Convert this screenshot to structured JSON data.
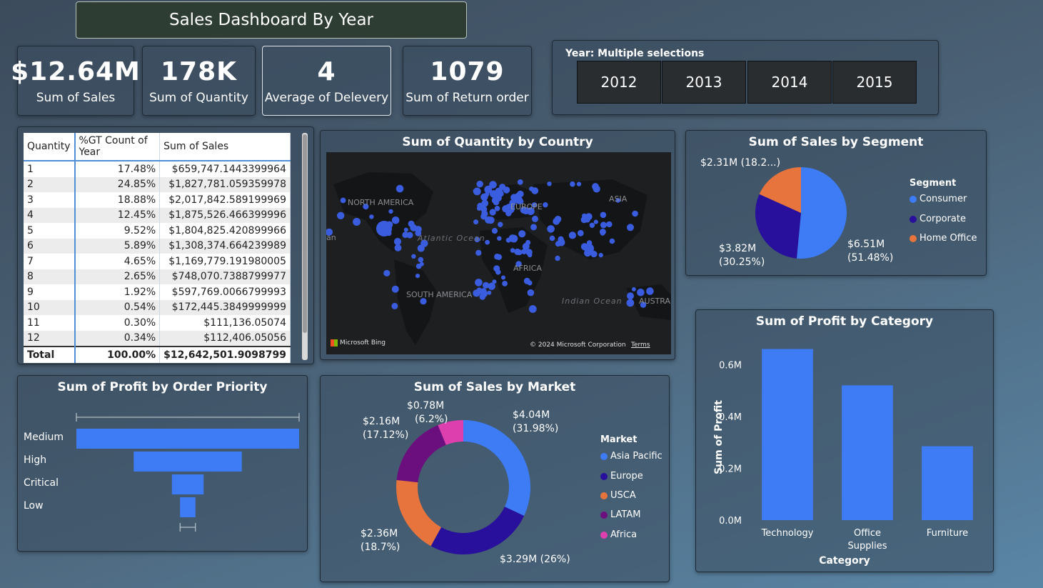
{
  "header": {
    "title": "Sales Dashboard By Year"
  },
  "kpis": [
    {
      "value": "$12.64M",
      "label": "Sum of Sales"
    },
    {
      "value": "178K",
      "label": "Sum of Quantity"
    },
    {
      "value": "4",
      "label": "Average of Delevery"
    },
    {
      "value": "1079",
      "label": "Sum of Return order"
    }
  ],
  "slicer": {
    "title": "Year: Multiple selections",
    "years": [
      "2012",
      "2013",
      "2014",
      "2015"
    ]
  },
  "table": {
    "columns": [
      "Quantity",
      "%GT Count of Year",
      "Sum of Sales"
    ],
    "rows": [
      [
        "1",
        "17.48%",
        "$659,747.1443399964"
      ],
      [
        "2",
        "24.85%",
        "$1,827,781.059359978"
      ],
      [
        "3",
        "18.88%",
        "$2,017,842.589199969"
      ],
      [
        "4",
        "12.45%",
        "$1,875,526.466399996"
      ],
      [
        "5",
        "9.52%",
        "$1,804,825.420899966"
      ],
      [
        "6",
        "5.89%",
        "$1,308,374.664239989"
      ],
      [
        "7",
        "4.65%",
        "$1,169,779.191980005"
      ],
      [
        "8",
        "2.65%",
        "$748,070.7388799977"
      ],
      [
        "9",
        "1.92%",
        "$597,769.0066799993"
      ],
      [
        "10",
        "0.54%",
        "$172,445.3849999999"
      ],
      [
        "11",
        "0.30%",
        "$111,136.05074"
      ],
      [
        "12",
        "0.34%",
        "$112,406.05056"
      ]
    ],
    "total": [
      "Total",
      "100.00%",
      "$12,642,501.9098799"
    ]
  },
  "map": {
    "title": "Sum of Quantity by Country",
    "continents": [
      "NORTH AMERICA",
      "EUROPE",
      "ASIA",
      "AFRICA",
      "SOUTH AMERICA",
      "AUSTRA"
    ],
    "oceans": [
      "Atlantic Ocean",
      "Indian Ocean"
    ],
    "edge_label": "an",
    "bing": "Microsoft Bing",
    "copyright": "© 2024 Microsoft Corporation",
    "terms": "Terms",
    "bubble_color": "#3a5de0"
  },
  "colors": {
    "blue": "#3d7cf5",
    "navy": "#28109c",
    "orange": "#e6743c",
    "purple": "#6c0f7e",
    "pink": "#de3fae"
  },
  "chart_data": [
    {
      "type": "pie",
      "title": "Sum of Sales by Segment",
      "legend_title": "Segment",
      "legend_placement": "right",
      "slices": [
        {
          "name": "Consumer",
          "value": 6.51,
          "label": "$6.51M",
          "pct": "(51.48%)",
          "color": "#3d7cf5"
        },
        {
          "name": "Corporate",
          "value": 3.82,
          "label": "$3.82M",
          "pct": "(30.25%)",
          "color": "#28109c"
        },
        {
          "name": "Home Office",
          "value": 2.31,
          "label": "$2.31M (18.2...)",
          "pct": "",
          "color": "#e6743c"
        }
      ]
    },
    {
      "type": "bar",
      "orientation": "vertical",
      "title": "Sum of Profit by Category",
      "xlabel": "Category",
      "ylabel": "Sum of Profit",
      "categories": [
        "Technology",
        "Office Supplies",
        "Furniture"
      ],
      "category_lines": [
        [
          "Technology"
        ],
        [
          "Office",
          "Supplies"
        ],
        [
          "Furniture"
        ]
      ],
      "values": [
        0.66,
        0.52,
        0.285
      ],
      "ylim": [
        0,
        0.7
      ],
      "yticks": [
        0,
        0.2,
        0.4,
        0.6
      ],
      "ytick_labels": [
        "0.0M",
        "0.2M",
        "0.4M",
        "0.6M"
      ],
      "color": "#3d7cf5"
    },
    {
      "type": "bar",
      "orientation": "funnel",
      "title": "Sum of Profit by Order Priority",
      "categories": [
        "Medium",
        "High",
        "Critical",
        "Low"
      ],
      "values": [
        0.752,
        0.365,
        0.107,
        0.052
      ],
      "color": "#3d7cf5"
    },
    {
      "type": "pie",
      "variant": "donut",
      "title": "Sum of Sales by Market",
      "legend_title": "Market",
      "legend_placement": "right",
      "slices": [
        {
          "name": "Asia Pacific",
          "value": 4.04,
          "label": "$4.04M",
          "pct": "(31.98%)",
          "color": "#3d7cf5"
        },
        {
          "name": "Europe",
          "value": 3.29,
          "label": "$3.29M (26%)",
          "pct": "",
          "color": "#28109c"
        },
        {
          "name": "USCA",
          "value": 2.36,
          "label": "$2.36M",
          "pct": "(18.7%)",
          "color": "#e6743c"
        },
        {
          "name": "LATAM",
          "value": 2.16,
          "label": "$2.16M",
          "pct": "(17.12%)",
          "color": "#6c0f7e"
        },
        {
          "name": "Africa",
          "value": 0.78,
          "label": "$0.78M",
          "pct": "(6.2%)",
          "color": "#de3fae"
        }
      ]
    }
  ]
}
